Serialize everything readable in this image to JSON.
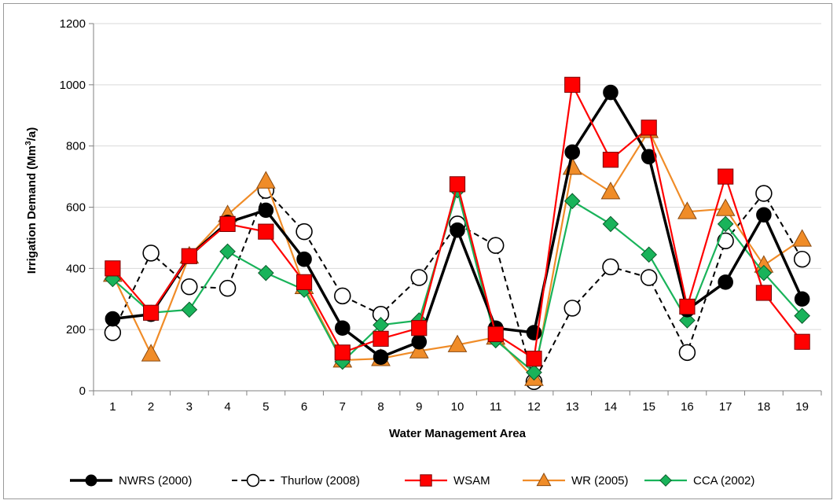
{
  "chart_data": {
    "type": "line",
    "xlabel": "Water Management Area",
    "ylabel": "Irrigation Demand (Mm³/a)",
    "ylim": [
      0,
      1200
    ],
    "yticks": [
      0,
      200,
      400,
      600,
      800,
      1000,
      1200
    ],
    "categories": [
      "1",
      "2",
      "3",
      "4",
      "5",
      "6",
      "7",
      "8",
      "9",
      "10",
      "11",
      "12",
      "13",
      "14",
      "15",
      "16",
      "17",
      "18",
      "19"
    ],
    "grid": "horizontal major gridlines",
    "legend_position": "bottom",
    "series": [
      {
        "name": "NWRS (2000)",
        "color": "#000000",
        "marker": "circle-filled",
        "line": "solid-thick",
        "values": [
          235,
          250,
          440,
          550,
          590,
          430,
          205,
          110,
          160,
          525,
          205,
          190,
          780,
          975,
          765,
          265,
          355,
          575,
          300
        ]
      },
      {
        "name": "Thurlow (2008)",
        "color": "#000000",
        "marker": "circle-open",
        "line": "dashed",
        "values": [
          190,
          450,
          340,
          335,
          655,
          520,
          310,
          250,
          370,
          545,
          475,
          30,
          270,
          405,
          370,
          125,
          490,
          645,
          430
        ]
      },
      {
        "name": "WSAM",
        "color": "#ff0000",
        "marker": "square",
        "line": "solid",
        "values": [
          400,
          255,
          440,
          545,
          520,
          355,
          125,
          170,
          205,
          675,
          185,
          105,
          1000,
          755,
          860,
          275,
          700,
          320,
          160
        ]
      },
      {
        "name": "WR (2005)",
        "color": "#f08c28",
        "marker": "triangle",
        "line": "solid",
        "values": [
          380,
          120,
          440,
          575,
          685,
          340,
          100,
          105,
          130,
          150,
          175,
          40,
          730,
          650,
          850,
          585,
          595,
          410,
          495
        ]
      },
      {
        "name": "CCA (2002)",
        "color": "#19b35a",
        "marker": "diamond",
        "line": "solid",
        "values": [
          365,
          255,
          265,
          455,
          385,
          330,
          95,
          215,
          230,
          655,
          165,
          60,
          620,
          545,
          445,
          230,
          545,
          385,
          245
        ]
      }
    ]
  }
}
